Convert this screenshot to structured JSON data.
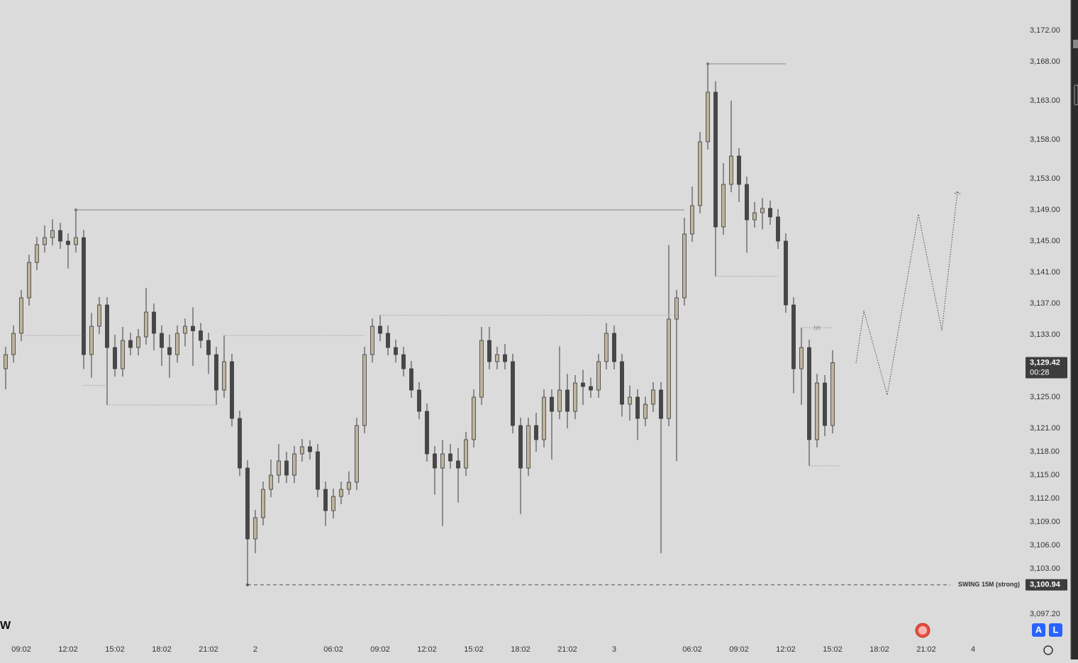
{
  "chart_data": {
    "type": "candlestick",
    "categories": [
      null,
      null,
      "09:02",
      null,
      null,
      null,
      null,
      null,
      "12:02",
      null,
      null,
      null,
      null,
      null,
      "15:02",
      null,
      null,
      null,
      null,
      null,
      "18:02",
      null,
      null,
      null,
      null,
      null,
      "21:02",
      null,
      null,
      null,
      null,
      null,
      "2",
      null,
      null,
      null,
      null,
      null,
      null,
      null,
      null,
      null,
      "06:02",
      null,
      null,
      null,
      null,
      null,
      "09:02",
      null,
      null,
      null,
      null,
      null,
      "12:02",
      null,
      null,
      null,
      null,
      null,
      "15:02",
      null,
      null,
      null,
      null,
      null,
      "18:02",
      null,
      null,
      null,
      null,
      null,
      "21:02",
      null,
      null,
      null,
      null,
      null,
      "3",
      null,
      null,
      null,
      null,
      null,
      null,
      null,
      null,
      null,
      "06:02",
      null,
      null,
      null,
      null,
      null,
      "09:02",
      null,
      null,
      null,
      null,
      null,
      "12:02",
      null,
      null,
      null,
      null,
      null,
      "15:02",
      null,
      null,
      null,
      null,
      null,
      "18:02",
      null,
      null,
      null,
      null,
      null,
      "21:02",
      null,
      null,
      null,
      null,
      null,
      "4"
    ],
    "open": [
      3128.64,
      3130.45,
      3133.18,
      3137.73,
      3142.27,
      3144.55,
      3145.45,
      3146.36,
      3145.0,
      3144.55,
      3145.45,
      3130.45,
      3134.09,
      3136.82,
      3131.36,
      3128.64,
      3132.27,
      3131.36,
      3132.73,
      3135.91,
      3133.18,
      3131.36,
      3130.45,
      3133.18,
      3134.09,
      3133.5,
      3132.27,
      3130.45,
      3125.91,
      3129.55,
      3122.27,
      3115.91,
      3106.82,
      3109.55,
      3113.18,
      3115.0,
      3116.82,
      3115.0,
      3117.73,
      3118.64,
      3118.0,
      3113.18,
      3110.45,
      3112.27,
      3113.18,
      3114.09,
      3121.36,
      3130.45,
      3134.09,
      3133.18,
      3131.36,
      3130.45,
      3128.64,
      3125.91,
      3123.18,
      3117.73,
      3115.91,
      3117.73,
      3116.82,
      3115.91,
      3119.55,
      3125.0,
      3132.27,
      3129.55,
      3130.45,
      3129.55,
      3121.36,
      3115.91,
      3121.36,
      3119.55,
      3125.0,
      3123.18,
      3125.91,
      3123.18,
      3126.82,
      3126.36,
      3125.91,
      3129.55,
      3133.18,
      3129.55,
      3124.09,
      3125.0,
      3122.27,
      3124.09,
      3125.91,
      3122.27,
      3135.0,
      3137.73,
      3145.91,
      3149.55,
      3157.73,
      3164.09,
      3146.82,
      3152.27,
      3155.91,
      3152.27,
      3147.73,
      3148.64,
      3149.2,
      3148.1,
      3145.0,
      3136.82,
      3128.64,
      3131.36,
      3119.55,
      3126.82,
      3121.36,
      null,
      null,
      null,
      null,
      null,
      null,
      null,
      null,
      null,
      null,
      null,
      null,
      null,
      null,
      null,
      null,
      null,
      null
    ],
    "high": [
      3131.45,
      3134.18,
      3138.73,
      3143.27,
      3145.55,
      3147.0,
      3147.8,
      3147.36,
      3146.0,
      3149.0,
      3146.45,
      3135.8,
      3137.82,
      3137.82,
      3133.0,
      3134.0,
      3133.27,
      3133.73,
      3139.0,
      3137.0,
      3134.18,
      3133.0,
      3134.18,
      3135.09,
      3136.5,
      3134.5,
      3133.27,
      3131.45,
      3132.9,
      3130.55,
      3123.27,
      3116.91,
      3110.55,
      3114.18,
      3117.0,
      3119.0,
      3118.0,
      3118.73,
      3119.64,
      3119.5,
      3119.0,
      3114.18,
      3113.27,
      3114.18,
      3115.5,
      3122.36,
      3131.45,
      3135.09,
      3135.5,
      3134.18,
      3132.36,
      3131.45,
      3129.64,
      3126.91,
      3124.18,
      3118.73,
      3119.5,
      3119.0,
      3118.5,
      3120.55,
      3126.0,
      3134.0,
      3134.0,
      3131.45,
      3131.8,
      3130.55,
      3122.36,
      3122.36,
      3123.0,
      3126.0,
      3126.0,
      3131.5,
      3128.0,
      3127.82,
      3128.5,
      3127.5,
      3130.55,
      3134.5,
      3134.18,
      3130.55,
      3126.5,
      3126.0,
      3125.09,
      3126.91,
      3126.91,
      3144.5,
      3138.73,
      3148.0,
      3152.0,
      3159.0,
      3167.73,
      3165.5,
      3155.0,
      3163.0,
      3156.91,
      3153.27,
      3150.0,
      3150.5,
      3150.2,
      3149.1,
      3146.0,
      3137.82,
      3133.9,
      3132.36,
      3128.0,
      3127.82,
      3131.0,
      null,
      null,
      null,
      null,
      null,
      null,
      null,
      null,
      null,
      null,
      null,
      null,
      null,
      null,
      null,
      null,
      null,
      null
    ],
    "low": [
      3126.0,
      3129.45,
      3132.18,
      3136.73,
      3141.27,
      3143.55,
      3144.45,
      3144.0,
      3141.5,
      3143.55,
      3128.6,
      3127.5,
      3133.09,
      3124.0,
      3127.64,
      3127.64,
      3130.36,
      3130.36,
      3131.73,
      3131.0,
      3129.0,
      3127.5,
      3129.45,
      3131.5,
      3129.0,
      3131.27,
      3128.0,
      3124.0,
      3124.91,
      3121.27,
      3114.91,
      3100.94,
      3105.0,
      3108.55,
      3112.18,
      3114.0,
      3114.0,
      3114.0,
      3116.73,
      3117.0,
      3112.18,
      3108.5,
      3109.45,
      3111.27,
      3112.5,
      3113.09,
      3120.36,
      3129.45,
      3132.18,
      3130.36,
      3129.45,
      3127.64,
      3124.91,
      3122.18,
      3116.73,
      3112.5,
      3108.5,
      3115.82,
      3111.5,
      3114.91,
      3118.55,
      3124.0,
      3128.55,
      3128.55,
      3128.55,
      3120.36,
      3110.0,
      3114.91,
      3118.0,
      3118.55,
      3117.0,
      3122.18,
      3121.0,
      3122.18,
      3124.0,
      3124.91,
      3124.91,
      3128.55,
      3128.55,
      3122.5,
      3122.0,
      3119.5,
      3121.27,
      3123.09,
      3105.0,
      3121.27,
      3116.8,
      3136.73,
      3144.91,
      3148.55,
      3156.73,
      3140.5,
      3145.82,
      3151.27,
      3150.0,
      3143.5,
      3146.73,
      3146.5,
      3147.1,
      3144.0,
      3135.82,
      3125.5,
      3124.0,
      3116.2,
      3118.55,
      3120.0,
      3120.36,
      null,
      null,
      null,
      null,
      null,
      null,
      null,
      null,
      null,
      null,
      null,
      null,
      null,
      null,
      null,
      null,
      null,
      null
    ],
    "close": [
      3130.45,
      3133.18,
      3137.73,
      3142.27,
      3144.55,
      3145.45,
      3146.36,
      3145.0,
      3144.55,
      3145.45,
      3130.45,
      3134.09,
      3136.82,
      3131.36,
      3128.64,
      3132.27,
      3131.36,
      3132.73,
      3135.91,
      3133.18,
      3131.36,
      3130.45,
      3133.18,
      3134.09,
      3133.5,
      3132.27,
      3130.45,
      3125.91,
      3129.55,
      3122.27,
      3115.91,
      3106.82,
      3109.55,
      3113.18,
      3115.0,
      3116.82,
      3115.0,
      3117.73,
      3118.64,
      3118.0,
      3113.18,
      3110.45,
      3112.27,
      3113.18,
      3114.09,
      3121.36,
      3130.45,
      3134.09,
      3133.18,
      3131.36,
      3130.45,
      3128.64,
      3125.91,
      3123.18,
      3117.73,
      3115.91,
      3117.73,
      3116.82,
      3115.91,
      3119.55,
      3125.0,
      3132.27,
      3129.55,
      3130.45,
      3129.55,
      3121.36,
      3115.91,
      3121.36,
      3119.55,
      3125.0,
      3123.18,
      3125.91,
      3123.18,
      3126.82,
      3126.36,
      3125.91,
      3129.55,
      3133.18,
      3129.55,
      3124.09,
      3125.0,
      3122.27,
      3124.09,
      3125.91,
      3122.27,
      3135.0,
      3137.73,
      3145.91,
      3149.55,
      3157.73,
      3164.09,
      3146.82,
      3152.27,
      3155.91,
      3152.27,
      3147.73,
      3148.64,
      3149.2,
      3148.1,
      3145.0,
      3136.82,
      3128.64,
      3131.36,
      3119.55,
      3126.82,
      3121.36,
      3129.42,
      null,
      null,
      null,
      null,
      null,
      null,
      null,
      null,
      null,
      null,
      null,
      null,
      null,
      null,
      null,
      null,
      null,
      null
    ],
    "up_color": "#bdb49c",
    "down_color": "#474747",
    "ylim": [
      3094.1,
      3175.91
    ],
    "yticks": [
      {
        "value": 3172,
        "label": "3,172.00"
      },
      {
        "value": 3168,
        "label": "3,168.00"
      },
      {
        "value": 3163,
        "label": "3,163.00"
      },
      {
        "value": 3158,
        "label": "3,158.00"
      },
      {
        "value": 3153,
        "label": "3,153.00"
      },
      {
        "value": 3149,
        "label": "3,149.00"
      },
      {
        "value": 3145,
        "label": "3,145.00"
      },
      {
        "value": 3141,
        "label": "3,141.00"
      },
      {
        "value": 3137,
        "label": "3,137.00"
      },
      {
        "value": 3133,
        "label": "3,133.00"
      },
      {
        "value": 3125,
        "label": "3,125.00"
      },
      {
        "value": 3121,
        "label": "3,121.00"
      },
      {
        "value": 3118,
        "label": "3,118.00"
      },
      {
        "value": 3115,
        "label": "3,115.00"
      },
      {
        "value": 3112,
        "label": "3,112.00"
      },
      {
        "value": 3109,
        "label": "3,109.00"
      },
      {
        "value": 3106,
        "label": "3,106.00"
      },
      {
        "value": 3103,
        "label": "3,103.00"
      },
      {
        "value": 3097.2,
        "label": "3,097.20"
      }
    ],
    "grid": false,
    "levels": [
      {
        "value": 3149.0,
        "from": 9,
        "to": 87,
        "style": "solid"
      },
      {
        "value": 3167.73,
        "from": 90,
        "to": 100,
        "style": "solid"
      },
      {
        "value": 3132.9,
        "from": 2,
        "to": 10,
        "style": "dotted"
      },
      {
        "value": 3126.5,
        "from": 10,
        "to": 13,
        "style": "dotted"
      },
      {
        "value": 3124.0,
        "from": 13,
        "to": 27,
        "style": "dotted"
      },
      {
        "value": 3132.9,
        "from": 28,
        "to": 46,
        "style": "dotted"
      },
      {
        "value": 3135.5,
        "from": 48,
        "to": 86,
        "style": "dotted"
      },
      {
        "value": 3140.5,
        "from": 91,
        "to": 99,
        "style": "dotted"
      },
      {
        "value": 3133.9,
        "from": 102,
        "to": 106,
        "style": "dotted",
        "label": "hh"
      },
      {
        "value": 3116.2,
        "from": 103,
        "to": 107,
        "style": "dotted"
      }
    ],
    "swing": {
      "value": 3100.94,
      "from": 31,
      "text": "SWING 15M (strong)",
      "label": "3,100.94"
    },
    "last_price": {
      "value": 3129.42,
      "label": "3,129.42",
      "countdown": "00:28"
    },
    "projection": {
      "x": [
        109,
        110,
        113,
        117,
        120,
        122
      ],
      "values": [
        3129.36,
        3136.09,
        3125.27,
        3148.45,
        3133.55,
        3151.36
      ]
    },
    "logo": "W",
    "buttons": [
      "A",
      "L"
    ]
  }
}
